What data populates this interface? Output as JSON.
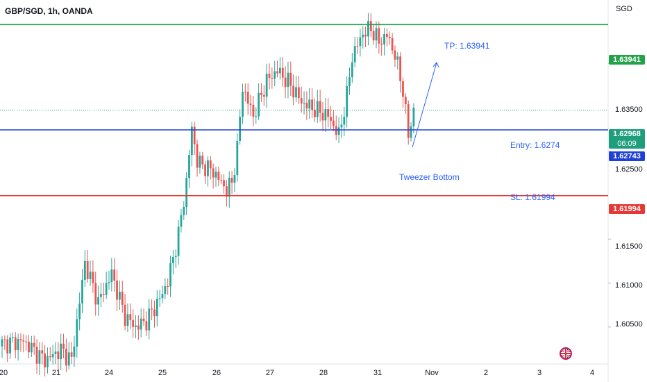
{
  "header": {
    "symbol": "GBP/SGD, 1h, OANDA"
  },
  "axis": {
    "currency": "SGD"
  },
  "levels": {
    "tp": {
      "value": 1.63941,
      "label": "1.63941",
      "text": "TP: 1.63941",
      "color": "#22a34a"
    },
    "current": {
      "value": 1.62968,
      "label": "1.62968",
      "countdown": "06:09",
      "color": "#1e9e7b"
    },
    "entry": {
      "value": 1.62743,
      "label": "1.62743",
      "text": "Entry: 1.6274",
      "color": "#1e40d6"
    },
    "sl": {
      "value": 1.61994,
      "label": "1.61994",
      "text": "SL: 1.61994",
      "color": "#e53935"
    }
  },
  "annotations": {
    "pattern": "Tweezer Bottom"
  },
  "colors": {
    "up": "#26a69a",
    "down": "#ef5350",
    "arrow": "#2962ff"
  },
  "chart_data": {
    "type": "candlestick",
    "title": "GBP/SGD, 1h, OANDA",
    "ylim": [
      1.6008,
      1.6422
    ],
    "y_ticks": [
      1.605,
      1.61,
      1.615,
      1.625,
      1.635
    ],
    "y_tick_labels": [
      "1.60500",
      "1.61000",
      "1.61500",
      "1.62500",
      "1.63500"
    ],
    "x_tick_labels": [
      "20",
      "21",
      "24",
      "25",
      "26",
      "27",
      "28",
      "31",
      "Nov",
      "2",
      "3",
      "4"
    ],
    "grid": false,
    "anchors": [
      {
        "i": 0,
        "p": 1.6031
      },
      {
        "i": 8,
        "p": 1.6034
      },
      {
        "i": 16,
        "p": 1.6012
      },
      {
        "i": 22,
        "p": 1.6024
      },
      {
        "i": 26,
        "p": 1.6012
      },
      {
        "i": 31,
        "p": 1.6123
      },
      {
        "i": 36,
        "p": 1.6078
      },
      {
        "i": 41,
        "p": 1.6111
      },
      {
        "i": 46,
        "p": 1.6062
      },
      {
        "i": 50,
        "p": 1.605
      },
      {
        "i": 54,
        "p": 1.6057
      },
      {
        "i": 59,
        "p": 1.6082
      },
      {
        "i": 62,
        "p": 1.6102
      },
      {
        "i": 66,
        "p": 1.6155
      },
      {
        "i": 69,
        "p": 1.6215
      },
      {
        "i": 71,
        "p": 1.6277
      },
      {
        "i": 73,
        "p": 1.6238
      },
      {
        "i": 79,
        "p": 1.6227
      },
      {
        "i": 84,
        "p": 1.6206
      },
      {
        "i": 86,
        "p": 1.6214
      },
      {
        "i": 88,
        "p": 1.6253
      },
      {
        "i": 90,
        "p": 1.6323
      },
      {
        "i": 94,
        "p": 1.629
      },
      {
        "i": 99,
        "p": 1.633
      },
      {
        "i": 103,
        "p": 1.6342
      },
      {
        "i": 108,
        "p": 1.6325
      },
      {
        "i": 112,
        "p": 1.6306
      },
      {
        "i": 118,
        "p": 1.6296
      },
      {
        "i": 122,
        "p": 1.629
      },
      {
        "i": 126,
        "p": 1.6268
      },
      {
        "i": 129,
        "p": 1.6313
      },
      {
        "i": 131,
        "p": 1.6358
      },
      {
        "i": 135,
        "p": 1.6384
      },
      {
        "i": 138,
        "p": 1.639
      },
      {
        "i": 141,
        "p": 1.6374
      },
      {
        "i": 144,
        "p": 1.6382
      },
      {
        "i": 147,
        "p": 1.636
      },
      {
        "i": 150,
        "p": 1.632
      },
      {
        "i": 152,
        "p": 1.6267
      },
      {
        "i": 154,
        "p": 1.6297
      }
    ],
    "series": [
      {
        "name": "TP",
        "values": [
          1.63941
        ]
      },
      {
        "name": "Entry",
        "values": [
          1.62743
        ]
      },
      {
        "name": "SL",
        "values": [
          1.61994
        ]
      }
    ]
  }
}
